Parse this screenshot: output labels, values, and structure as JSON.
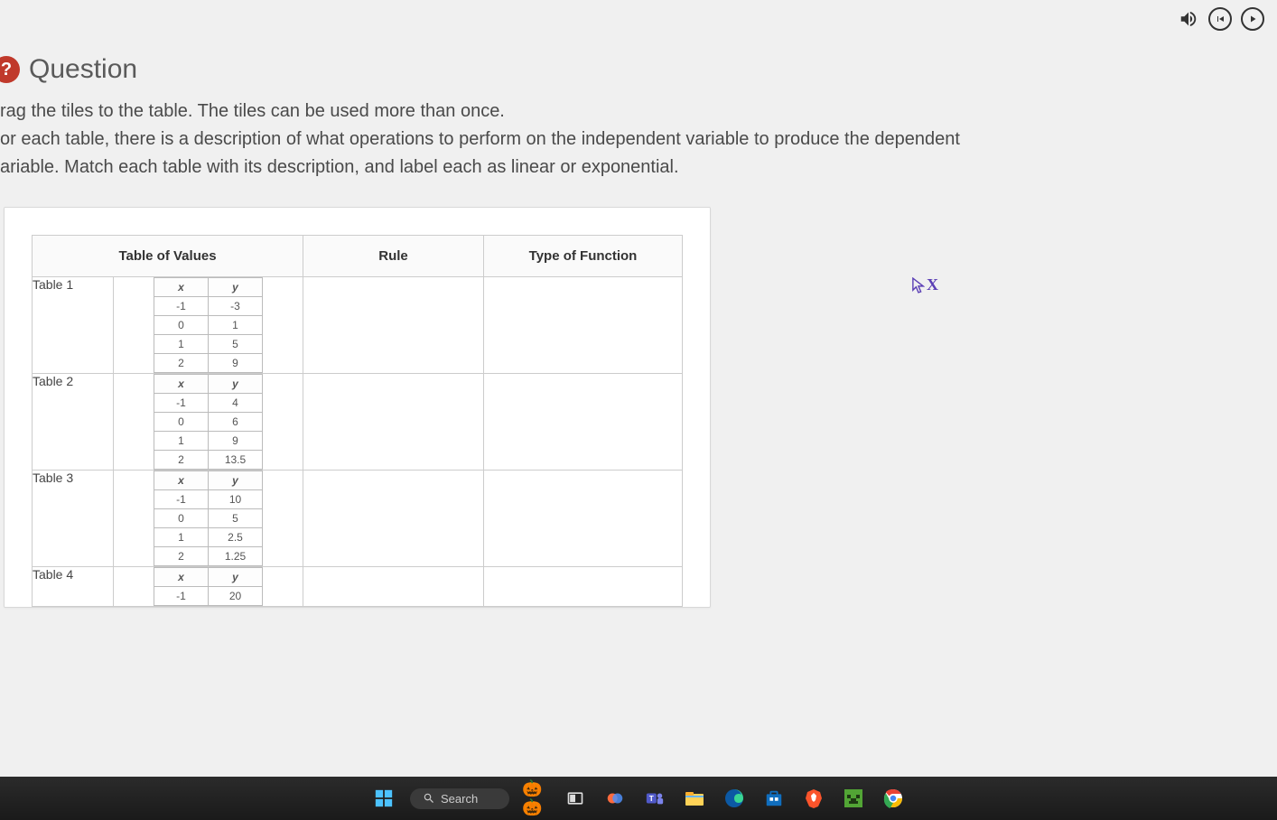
{
  "colors": {
    "page_bg": "#f0f0f0",
    "panel_bg": "#ffffff",
    "border": "#cccccc",
    "mini_border": "#bbbbbb",
    "text": "#4a4a4a",
    "badge_bg": "#c0392b",
    "cursor": "#5b3fb5"
  },
  "top_controls": {
    "sound_icon": "🔊",
    "prev_icon": "⏮",
    "play_icon": "▶"
  },
  "question": {
    "badge": "?",
    "title": "Question",
    "line1": "rag the tiles to the table. The tiles can be used more than once.",
    "line2": "or each table, there is a description of what operations to perform on the independent variable to produce the dependent",
    "line3": "ariable. Match each table with its description, and label each as linear or exponential."
  },
  "headers": {
    "tov": "Table of Values",
    "rule": "Rule",
    "type": "Type of Function"
  },
  "mini_headers": {
    "x": "x",
    "y": "y"
  },
  "tables": [
    {
      "label": "Table 1",
      "rows": [
        [
          "-1",
          "-3"
        ],
        [
          "0",
          "1"
        ],
        [
          "1",
          "5"
        ],
        [
          "2",
          "9"
        ]
      ]
    },
    {
      "label": "Table 2",
      "rows": [
        [
          "-1",
          "4"
        ],
        [
          "0",
          "6"
        ],
        [
          "1",
          "9"
        ],
        [
          "2",
          "13.5"
        ]
      ]
    },
    {
      "label": "Table 3",
      "rows": [
        [
          "-1",
          "10"
        ],
        [
          "0",
          "5"
        ],
        [
          "1",
          "2.5"
        ],
        [
          "2",
          "1.25"
        ]
      ]
    },
    {
      "label": "Table 4",
      "rows": [
        [
          "-1",
          "20"
        ]
      ]
    }
  ],
  "taskbar": {
    "search_placeholder": "Search"
  }
}
